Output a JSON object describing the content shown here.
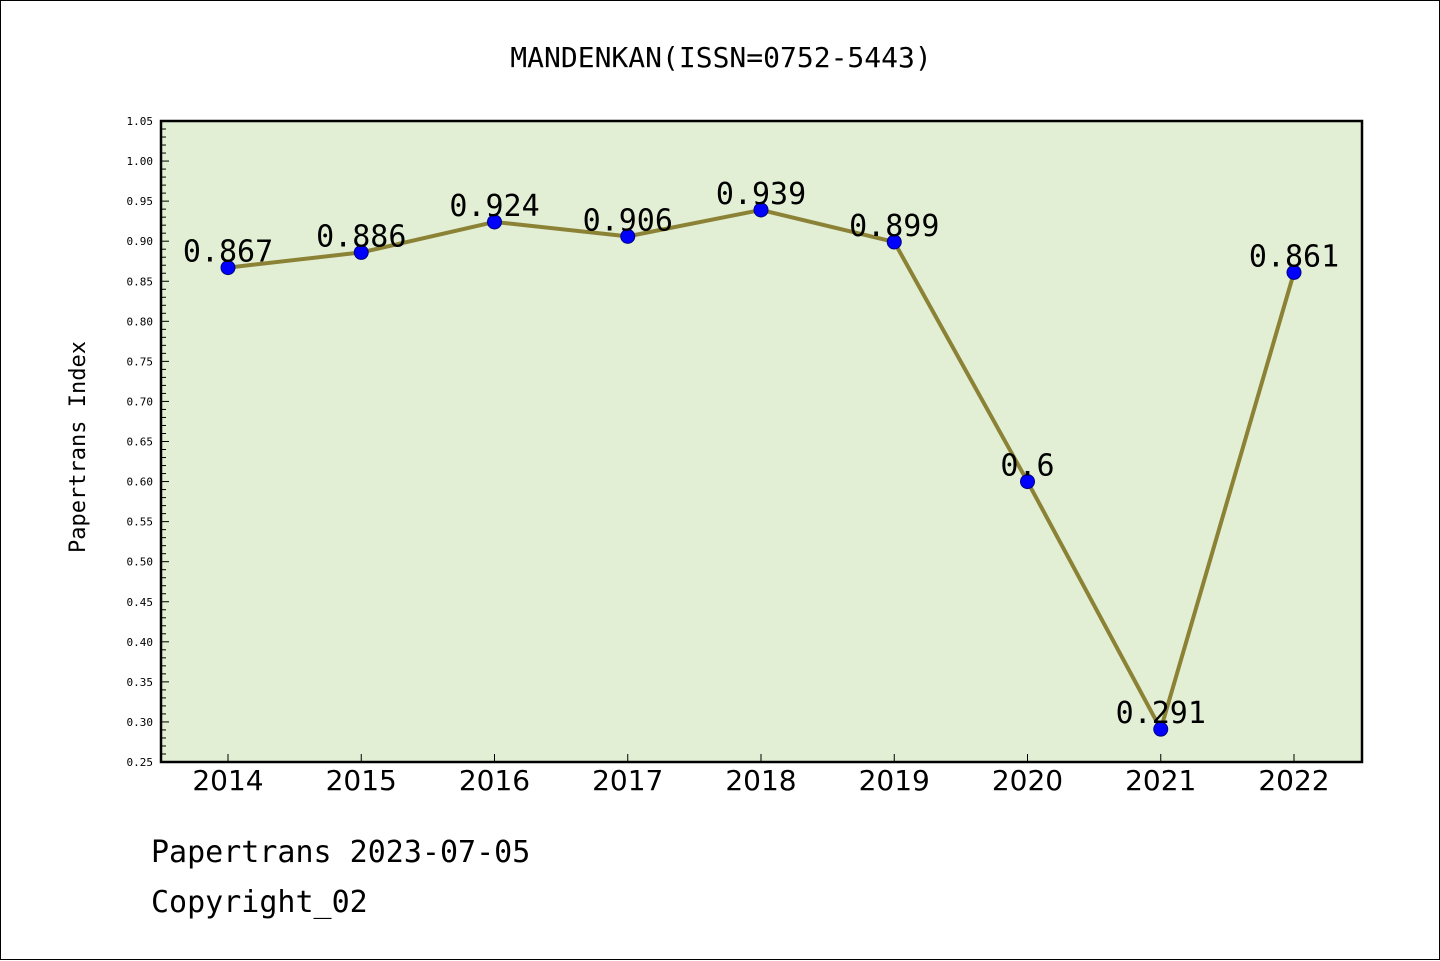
{
  "chart_data": {
    "type": "line",
    "title": "MANDENKAN(ISSN=0752-5443)",
    "xlabel": "",
    "ylabel": "Papertrans Index",
    "categories": [
      "2014",
      "2015",
      "2016",
      "2017",
      "2018",
      "2019",
      "2020",
      "2021",
      "2022"
    ],
    "values": [
      0.867,
      0.886,
      0.924,
      0.906,
      0.939,
      0.899,
      0.6,
      0.291,
      0.861
    ],
    "data_labels": [
      "0.867",
      "0.886",
      "0.924",
      "0.906",
      "0.939",
      "0.899",
      "0.6",
      "0.291",
      "0.861"
    ],
    "ylim": [
      0.25,
      1.05
    ],
    "yticks": [
      "0.25",
      "0.30",
      "0.35",
      "0.40",
      "0.45",
      "0.50",
      "0.55",
      "0.60",
      "0.65",
      "0.70",
      "0.75",
      "0.80",
      "0.85",
      "0.90",
      "0.95",
      "1.00",
      "1.05"
    ],
    "grid": false,
    "legend": "none",
    "colors": {
      "plot_background": "#e2efd4",
      "line": "#8b8236",
      "marker": "#0000ff"
    }
  },
  "footer": {
    "line1": "Papertrans 2023-07-05",
    "line2": "Copyright_02"
  }
}
